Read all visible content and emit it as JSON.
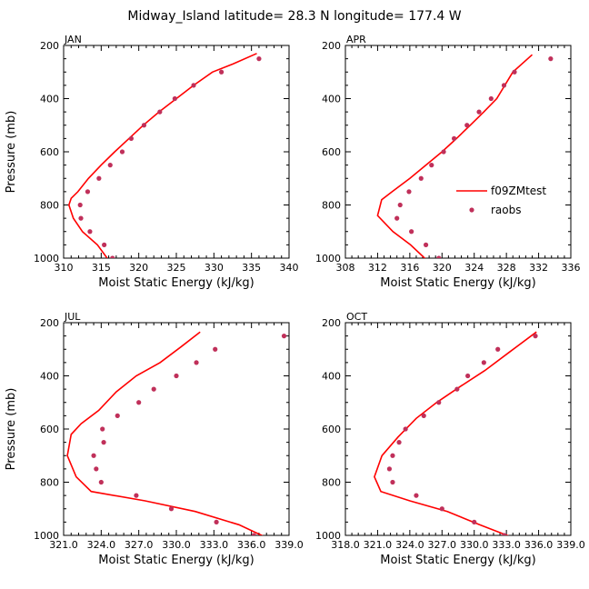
{
  "figure": {
    "title": "Midway_Island   latitude= 28.3 N longitude= 177.4 W"
  },
  "legend": {
    "model_label": "f09ZMtest",
    "obs_label": "raobs"
  },
  "colors": {
    "model": "#ff0000",
    "obs": "#c0305a"
  },
  "chart_data": [
    {
      "type": "line",
      "panel": "JAN",
      "xlabel": "Moist Static Energy (kJ/kg)",
      "ylabel": "Pressure (mb)",
      "xlim": [
        310,
        340
      ],
      "ylim": [
        1000,
        200
      ],
      "xticks": [
        310,
        315,
        320,
        325,
        330,
        335,
        340
      ],
      "xtick_labels": [
        "310",
        "315",
        "320",
        "325",
        "330",
        "335",
        "340"
      ],
      "yticks": [
        200,
        400,
        600,
        800,
        1000
      ],
      "ytick_labels": [
        "200",
        "400",
        "600",
        "800",
        "1000"
      ],
      "series": [
        {
          "name": "f09ZMtest",
          "kind": "line",
          "x": [
            315.8,
            314.5,
            312.5,
            311.3,
            310.7,
            311.0,
            311.9,
            313.3,
            315.0,
            316.8,
            318.7,
            320.6,
            322.7,
            325.0,
            327.3,
            329.8,
            332.5,
            335.7
          ],
          "y": [
            1000,
            950,
            900,
            850,
            800,
            775,
            750,
            700,
            650,
            600,
            550,
            500,
            450,
            400,
            350,
            300,
            270,
            230
          ]
        },
        {
          "name": "raobs",
          "kind": "scatter",
          "x": [
            316.5,
            315.4,
            313.5,
            312.3,
            312.2,
            313.2,
            314.7,
            316.2,
            317.8,
            319.0,
            320.7,
            322.8,
            324.8,
            327.3,
            331.0,
            336.0
          ],
          "y": [
            1000,
            950,
            900,
            850,
            800,
            750,
            700,
            650,
            600,
            550,
            500,
            450,
            400,
            350,
            300,
            250
          ]
        }
      ]
    },
    {
      "type": "line",
      "panel": "APR",
      "xlabel": "Moist Static Energy (kJ/kg)",
      "ylabel": "",
      "xlim": [
        308,
        336
      ],
      "ylim": [
        1000,
        200
      ],
      "xticks": [
        308,
        312,
        316,
        320,
        324,
        328,
        332,
        336
      ],
      "xtick_labels": [
        "308",
        "312",
        "316",
        "320",
        "324",
        "328",
        "332",
        "336"
      ],
      "yticks": [
        200,
        400,
        600,
        800,
        1000
      ],
      "ytick_labels": [
        "200",
        "400",
        "600",
        "800",
        "1000"
      ],
      "series": [
        {
          "name": "f09ZMtest",
          "kind": "line",
          "x": [
            318.2,
            316.1,
            313.9,
            312.0,
            312.5,
            313.8,
            316.0,
            318.0,
            320.0,
            321.8,
            323.5,
            325.2,
            326.8,
            328.8,
            331.2
          ],
          "y": [
            1010,
            950,
            900,
            840,
            780,
            750,
            700,
            650,
            600,
            550,
            500,
            450,
            400,
            300,
            235
          ]
        },
        {
          "name": "raobs",
          "kind": "scatter",
          "x": [
            319.6,
            318.0,
            316.2,
            314.4,
            314.8,
            315.9,
            317.4,
            318.7,
            320.2,
            321.5,
            323.1,
            324.6,
            326.1,
            327.7,
            329.0,
            333.5
          ],
          "y": [
            1000,
            950,
            900,
            850,
            800,
            750,
            700,
            650,
            600,
            550,
            500,
            450,
            400,
            350,
            300,
            250
          ]
        }
      ]
    },
    {
      "type": "line",
      "panel": "JUL",
      "xlabel": "Moist Static Energy (kJ/kg)",
      "ylabel": "Pressure (mb)",
      "xlim": [
        321,
        339
      ],
      "ylim": [
        1000,
        200
      ],
      "xticks": [
        321,
        324,
        327,
        330,
        333,
        336,
        339
      ],
      "xtick_labels": [
        "321.0",
        "324.0",
        "327.0",
        "330.0",
        "333.0",
        "336.0",
        "339.0"
      ],
      "yticks": [
        200,
        400,
        600,
        800,
        1000
      ],
      "ytick_labels": [
        "200",
        "400",
        "600",
        "800",
        "1000"
      ],
      "series": [
        {
          "name": "f09ZMtest",
          "kind": "line",
          "x": [
            337.5,
            335.0,
            331.5,
            327.5,
            323.2,
            322.0,
            321.3,
            321.6,
            322.4,
            323.8,
            325.2,
            326.8,
            328.7,
            330.4,
            331.9
          ],
          "y": [
            1015,
            960,
            910,
            870,
            835,
            780,
            700,
            620,
            580,
            530,
            460,
            400,
            350,
            290,
            235
          ]
        },
        {
          "name": "raobs",
          "kind": "scatter",
          "x": [
            336.2,
            333.2,
            329.6,
            326.8,
            324.0,
            323.6,
            323.4,
            324.2,
            324.1,
            325.3,
            327.0,
            328.2,
            330.0,
            331.6,
            333.1,
            338.6
          ],
          "y": [
            1000,
            950,
            900,
            850,
            800,
            750,
            700,
            650,
            600,
            550,
            500,
            450,
            400,
            350,
            300,
            250
          ]
        }
      ]
    },
    {
      "type": "line",
      "panel": "OCT",
      "xlabel": "Moist Static Energy (kJ/kg)",
      "ylabel": "",
      "xlim": [
        318,
        339
      ],
      "ylim": [
        1000,
        200
      ],
      "xticks": [
        318,
        321,
        324,
        327,
        330,
        333,
        336,
        339
      ],
      "xtick_labels": [
        "318.0",
        "321.0",
        "324.0",
        "327.0",
        "330.0",
        "333.0",
        "336.0",
        "339.0"
      ],
      "yticks": [
        200,
        400,
        600,
        800,
        1000
      ],
      "ytick_labels": [
        "200",
        "400",
        "600",
        "800",
        "1000"
      ],
      "series": [
        {
          "name": "f09ZMtest",
          "kind": "line",
          "x": [
            333.7,
            330.5,
            327.5,
            324.0,
            321.3,
            320.7,
            321.4,
            322.9,
            324.6,
            326.5,
            328.7,
            331.0,
            333.3,
            335.8
          ],
          "y": [
            1010,
            960,
            910,
            870,
            835,
            780,
            700,
            630,
            560,
            500,
            440,
            380,
            310,
            235
          ]
        },
        {
          "name": "raobs",
          "kind": "scatter",
          "x": [
            332.8,
            330.0,
            327.0,
            324.6,
            322.4,
            322.1,
            322.4,
            323.0,
            323.6,
            325.3,
            326.7,
            328.4,
            329.4,
            330.9,
            332.2,
            335.7
          ],
          "y": [
            1000,
            950,
            900,
            850,
            800,
            750,
            700,
            650,
            600,
            550,
            500,
            450,
            400,
            350,
            300,
            250
          ]
        }
      ]
    }
  ]
}
